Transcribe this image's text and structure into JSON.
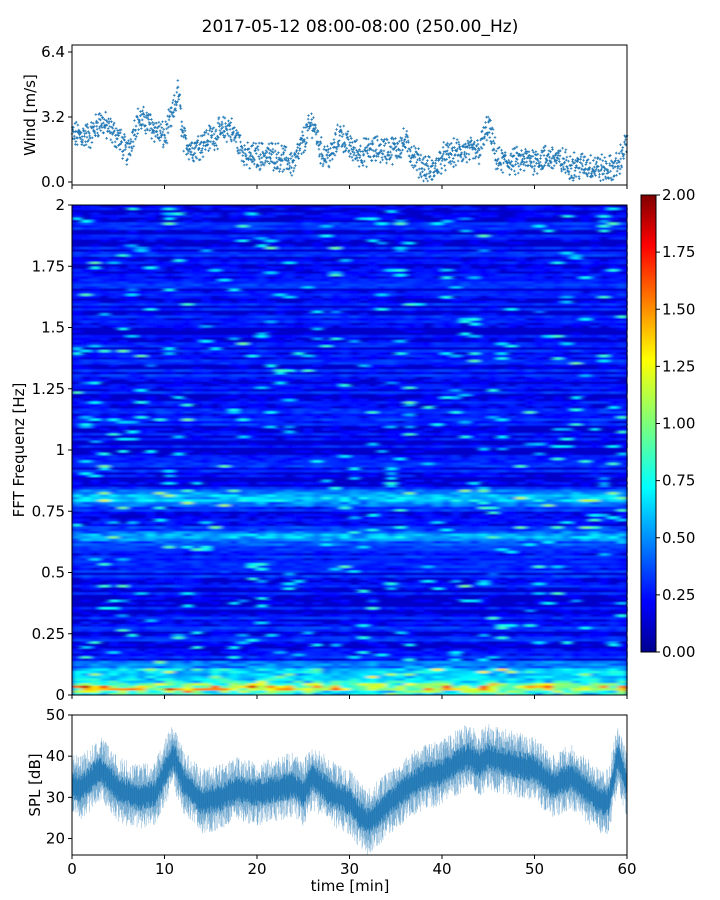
{
  "title": "2017-05-12 08:00-08:00 (250.00_Hz)",
  "chart_data": [
    {
      "type": "scatter",
      "ylabel": "Wind [m/s]",
      "xlim": [
        0,
        60
      ],
      "ylim": [
        0,
        6.4
      ],
      "yticks": [
        "0.0",
        "3.2",
        "6.4"
      ],
      "marker_color": "#1f77b4",
      "profile": {
        "x": [
          0,
          2,
          3,
          5,
          6,
          7,
          8,
          9,
          10,
          11,
          11.5,
          12,
          13,
          15,
          17,
          19,
          20,
          22,
          24,
          25,
          26,
          27,
          28,
          29,
          30,
          31,
          33,
          35,
          36,
          37,
          38,
          39,
          40,
          42,
          44,
          45,
          46,
          48,
          50,
          52,
          54,
          56,
          58,
          59,
          60
        ],
        "y": [
          2.3,
          2.3,
          3.0,
          2.2,
          1.4,
          3.0,
          3.0,
          2.6,
          2.2,
          3.5,
          4.5,
          2.1,
          1.6,
          2.2,
          2.7,
          1.2,
          1.3,
          1.3,
          0.9,
          2.0,
          3.0,
          1.4,
          1.3,
          2.4,
          1.7,
          1.4,
          1.6,
          1.6,
          2.0,
          1.2,
          0.7,
          0.5,
          1.2,
          1.5,
          1.5,
          2.8,
          1.0,
          1.0,
          1.1,
          1.2,
          0.8,
          0.8,
          0.6,
          0.8,
          2.0
        ]
      }
    },
    {
      "type": "heatmap",
      "ylabel": "FFT Frequenz [Hz]",
      "xlim": [
        0,
        60
      ],
      "ylim": [
        0,
        2
      ],
      "yticks": [
        "0",
        "0.25",
        "0.5",
        "0.75",
        "1",
        "1.25",
        "1.5",
        "1.75",
        "2"
      ],
      "colormap": "jet",
      "colorbar": {
        "range": [
          0.0,
          2.0
        ],
        "ticks": [
          "0.00",
          "0.25",
          "0.50",
          "0.75",
          "1.00",
          "1.25",
          "1.50",
          "1.75",
          "2.00"
        ]
      },
      "bands": [
        {
          "freq": 0.8,
          "level": 0.55
        },
        {
          "freq": 0.65,
          "level": 0.5
        },
        {
          "freq": 0.1,
          "level": 0.6
        },
        {
          "freq": 0.03,
          "level": 1.4
        }
      ]
    },
    {
      "type": "line",
      "ylabel": "SPL [dB]",
      "xlabel": "time [min]",
      "xlim": [
        0,
        60
      ],
      "ylim": [
        16,
        50
      ],
      "yticks": [
        "20",
        "30",
        "40",
        "50"
      ],
      "xticks": [
        "0",
        "10",
        "20",
        "30",
        "40",
        "50",
        "60"
      ],
      "line_color": "#1f77b4",
      "profile": {
        "x": [
          0,
          1,
          3,
          5,
          7,
          9,
          10,
          11,
          12,
          14,
          16,
          18,
          20,
          22,
          24,
          25,
          26,
          28,
          30,
          31,
          32,
          34,
          36,
          38,
          40,
          42,
          43,
          44,
          45,
          46,
          48,
          50,
          52,
          54,
          56,
          57,
          58,
          59,
          60
        ],
        "y": [
          33,
          32,
          37,
          32,
          30,
          31,
          36,
          40,
          34,
          29,
          30,
          32,
          31,
          32,
          33,
          31,
          35,
          31,
          29,
          26,
          24,
          28,
          32,
          35,
          36,
          39,
          40,
          38,
          40,
          39,
          38,
          37,
          33,
          35,
          31,
          29,
          29,
          40,
          33
        ]
      }
    }
  ]
}
